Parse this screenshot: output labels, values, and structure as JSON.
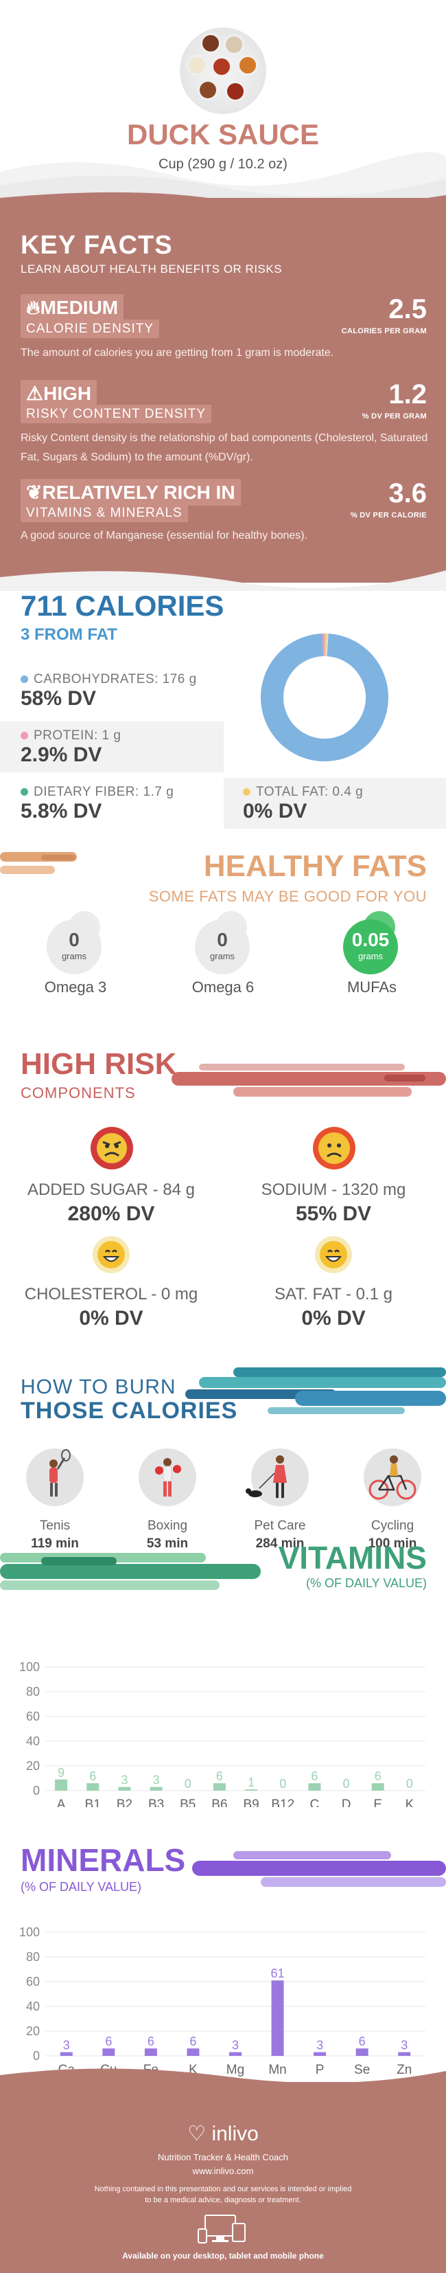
{
  "header": {
    "title": "DUCK SAUCE",
    "serving": "Cup (290 g / 10.2 oz)"
  },
  "key_facts": {
    "title": "KEY FACTS",
    "subtitle": "LEARN ABOUT HEALTH BENEFITS OR RISKS",
    "calorie_density": {
      "level": "MEDIUM",
      "label": "CALORIE DENSITY",
      "value": "2.5",
      "unit": "CALORIES PER GRAM",
      "description": "The amount of calories you are getting from 1 gram is moderate."
    },
    "risky_content": {
      "level": "HIGH",
      "label": "RISKY CONTENT DENSITY",
      "value": "1.2",
      "unit": "% DV PER GRAM",
      "description": "Risky Content density is the relationship of bad components (Cholesterol, Saturated Fat, Sugars & Sodium) to the amount (%DV/gr)."
    },
    "vitamins_minerals": {
      "level": "RELATIVELY RICH  IN",
      "label": "VITAMINS & MINERALS",
      "value": "3.6",
      "unit": "% DV PER CALORIE",
      "description": "A good source of Manganese (essential for healthy bones)."
    }
  },
  "calories": {
    "title": "711 CALORIES",
    "from_fat": "3 FROM FAT",
    "carbs_label": "CARBOHYDRATES: 176 g",
    "carbs_dv": "58% DV",
    "protein_label": "PROTEIN: 1 g",
    "protein_dv": "2.9% DV",
    "fiber_label": "DIETARY FIBER: 1.7 g",
    "fiber_dv": "5.8% DV",
    "fat_label": "TOTAL FAT: 0.4 g",
    "fat_dv": "0% DV",
    "colors": {
      "carbs": "#7fb3e0",
      "protein": "#f29bb0",
      "fiber": "#4db38c",
      "fat": "#f3cc6a"
    },
    "donut_shares": {
      "carbs": 0.985,
      "protein": 0.006,
      "fat": 0.005,
      "other": 0.004
    }
  },
  "healthy_fats": {
    "title": "HEALTHY FATS",
    "subtitle": "SOME FATS MAY BE GOOD FOR YOU",
    "items": [
      {
        "value": "0",
        "unit": "grams",
        "name": "Omega 3"
      },
      {
        "value": "0",
        "unit": "grams",
        "name": "Omega 6"
      },
      {
        "value": "0.05",
        "unit": "grams",
        "name": "MUFAs"
      }
    ]
  },
  "high_risk": {
    "title": "HIGH RISK",
    "subtitle": "COMPONENTS",
    "items": [
      {
        "label": "ADDED SUGAR - 84 g",
        "dv": "280% DV",
        "face": "angry"
      },
      {
        "label": "SODIUM - 1320 mg",
        "dv": "55% DV",
        "face": "sad"
      },
      {
        "label": "CHOLESTEROL - 0 mg",
        "dv": "0% DV",
        "face": "happy"
      },
      {
        "label": "SAT. FAT - 0.1 g",
        "dv": "0% DV",
        "face": "happy"
      }
    ]
  },
  "burn": {
    "title_line1": "HOW TO BURN",
    "title_line2": "THOSE CALORIES",
    "activities": [
      {
        "name": "Tenis",
        "minutes": "119 min",
        "icon": "tennis-player-icon"
      },
      {
        "name": "Boxing",
        "minutes": "53 min",
        "icon": "boxer-icon"
      },
      {
        "name": "Pet Care",
        "minutes": "284 min",
        "icon": "dog-walker-icon"
      },
      {
        "name": "Cycling",
        "minutes": "100 min",
        "icon": "cyclist-icon"
      }
    ]
  },
  "vitamins": {
    "title": "VITAMINS",
    "subtitle": "(% OF DAILY VALUE)"
  },
  "minerals": {
    "title": "MINERALS",
    "subtitle": "(% OF DAILY VALUE)"
  },
  "chart_data": [
    {
      "type": "bar",
      "title": "VITAMINS",
      "categories": [
        "A",
        "B1",
        "B2",
        "B3",
        "B5",
        "B6",
        "B9",
        "B12",
        "C",
        "D",
        "E",
        "K"
      ],
      "values": [
        9,
        6,
        3,
        3,
        0,
        6,
        1,
        0,
        6,
        0,
        6,
        0
      ],
      "ylim": [
        0,
        100
      ],
      "yticks": [
        0,
        20,
        40,
        60,
        80,
        100
      ],
      "color": "#9cd3b2",
      "label_color": "#3fa07a"
    },
    {
      "type": "bar",
      "title": "MINERALS",
      "categories": [
        "Ca",
        "Cu",
        "Fe",
        "K",
        "Mg",
        "Mn",
        "P",
        "Se",
        "Zn"
      ],
      "values": [
        3,
        6,
        6,
        6,
        3,
        61,
        3,
        6,
        3
      ],
      "ylim": [
        0,
        100
      ],
      "yticks": [
        0,
        20,
        40,
        60,
        80,
        100
      ],
      "color": "#9a78e0",
      "label_color": "#8759d6"
    }
  ],
  "footer": {
    "brand": "inlivo",
    "tagline": "Nutrition Tracker & Health Coach",
    "url": "www.inlivo.com",
    "disclaimer_1": "Nothing contained in this presentation and our services is intended or implied",
    "disclaimer_2": "to be a medical advice, diagnosis or treatment.",
    "devices": "Available on your desktop, tablet and mobile phone"
  }
}
